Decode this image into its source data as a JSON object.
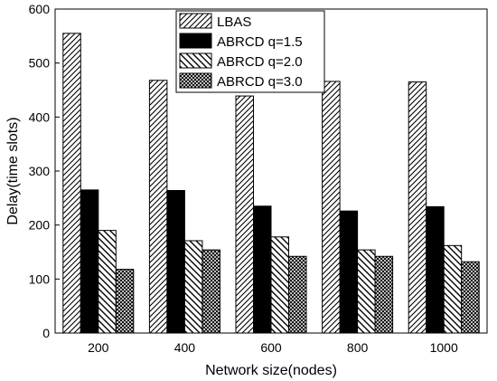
{
  "chart_data": {
    "type": "bar",
    "xlabel": "Network size(nodes)",
    "ylabel": "Delay(time slots)",
    "ylim": [
      0,
      600
    ],
    "yticks": [
      0,
      100,
      200,
      300,
      400,
      500,
      600
    ],
    "categories": [
      "200",
      "400",
      "600",
      "800",
      "1000"
    ],
    "legend_position": "top-center",
    "grid": false,
    "series": [
      {
        "name": "LBAS",
        "pattern": "diagonal-hatch",
        "values": [
          555,
          468,
          439,
          466,
          465
        ]
      },
      {
        "name": "ABRCD q=1.5",
        "pattern": "solid-black",
        "values": [
          265,
          264,
          235,
          226,
          234
        ]
      },
      {
        "name": "ABRCD q=2.0",
        "pattern": "back-diagonal-hatch",
        "values": [
          190,
          171,
          178,
          154,
          162
        ]
      },
      {
        "name": "ABRCD q=3.0",
        "pattern": "crosshatch",
        "values": [
          118,
          154,
          142,
          142,
          132
        ]
      }
    ]
  }
}
